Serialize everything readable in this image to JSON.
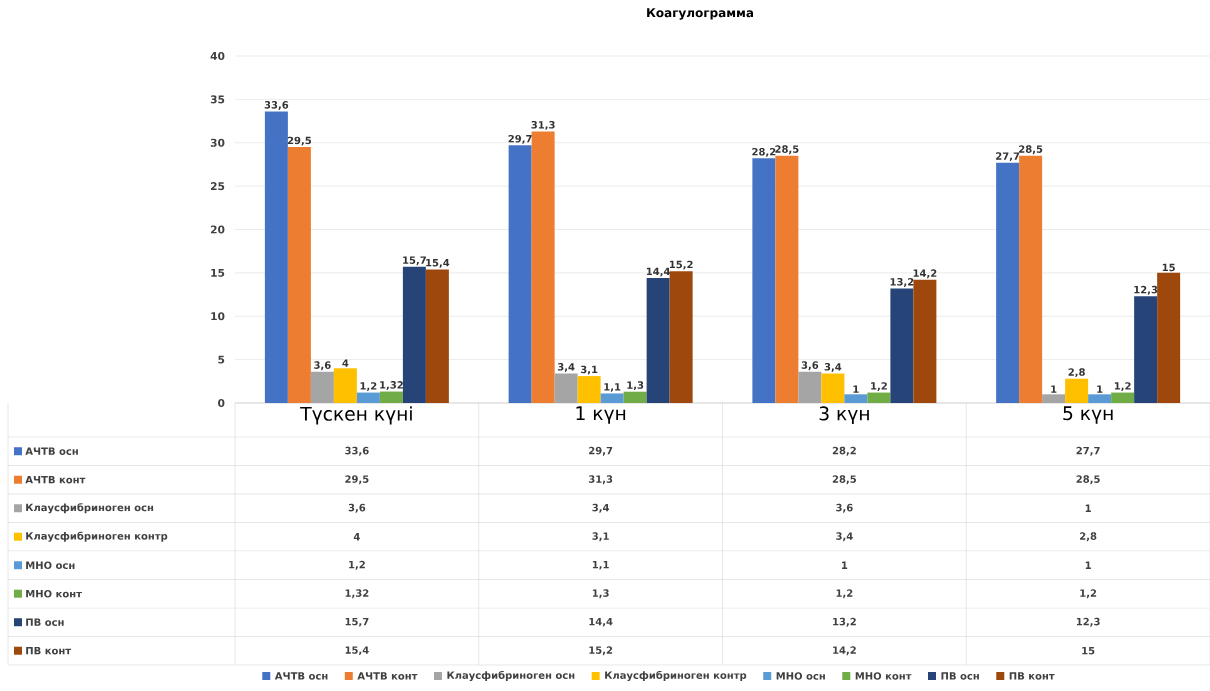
{
  "chart_data": {
    "type": "bar",
    "title": "Коагулограмма",
    "categories": [
      "Түскен күні",
      "1 күн",
      "3 күн",
      "5 күн"
    ],
    "series": [
      {
        "name": "АЧТВ осн",
        "color": "#4472c4",
        "values": [
          33.6,
          29.7,
          28.2,
          27.7
        ],
        "value_labels": [
          "33,6",
          "29,7",
          "28,2",
          "27,7"
        ]
      },
      {
        "name": "АЧТВ конт",
        "color": "#ed7d31",
        "values": [
          29.5,
          31.3,
          28.5,
          28.5
        ],
        "value_labels": [
          "29,5",
          "31,3",
          "28,5",
          "28,5"
        ]
      },
      {
        "name": "Клаусфибриноген осн",
        "color": "#a5a5a5",
        "values": [
          3.6,
          3.4,
          3.6,
          1
        ],
        "value_labels": [
          "3,6",
          "3,4",
          "3,6",
          "1"
        ]
      },
      {
        "name": "Клаусфибриноген контр",
        "color": "#ffc000",
        "values": [
          4,
          3.1,
          3.4,
          2.8
        ],
        "value_labels": [
          "4",
          "3,1",
          "3,4",
          "2,8"
        ]
      },
      {
        "name": "МНО осн",
        "color": "#5b9bd5",
        "values": [
          1.2,
          1.1,
          1,
          1
        ],
        "value_labels": [
          "1,2",
          "1,1",
          "1",
          "1"
        ]
      },
      {
        "name": "МНО конт",
        "color": "#70ad47",
        "values": [
          1.32,
          1.3,
          1.2,
          1.2
        ],
        "value_labels": [
          "1,32",
          "1,3",
          "1,2",
          "1,2"
        ]
      },
      {
        "name": "ПВ осн",
        "color": "#264478",
        "values": [
          15.7,
          14.4,
          13.2,
          12.3
        ],
        "value_labels": [
          "15,7",
          "14,4",
          "13,2",
          "12,3"
        ]
      },
      {
        "name": "ПВ конт",
        "color": "#9e480e",
        "values": [
          15.4,
          15.2,
          14.2,
          15
        ],
        "value_labels": [
          "15,4",
          "15,2",
          "14,2",
          "15"
        ]
      }
    ],
    "ylim": [
      0,
      40
    ],
    "yticks": [
      0,
      5,
      10,
      15,
      20,
      25,
      30,
      35,
      40
    ],
    "grid": "y",
    "legend": "bottom"
  }
}
